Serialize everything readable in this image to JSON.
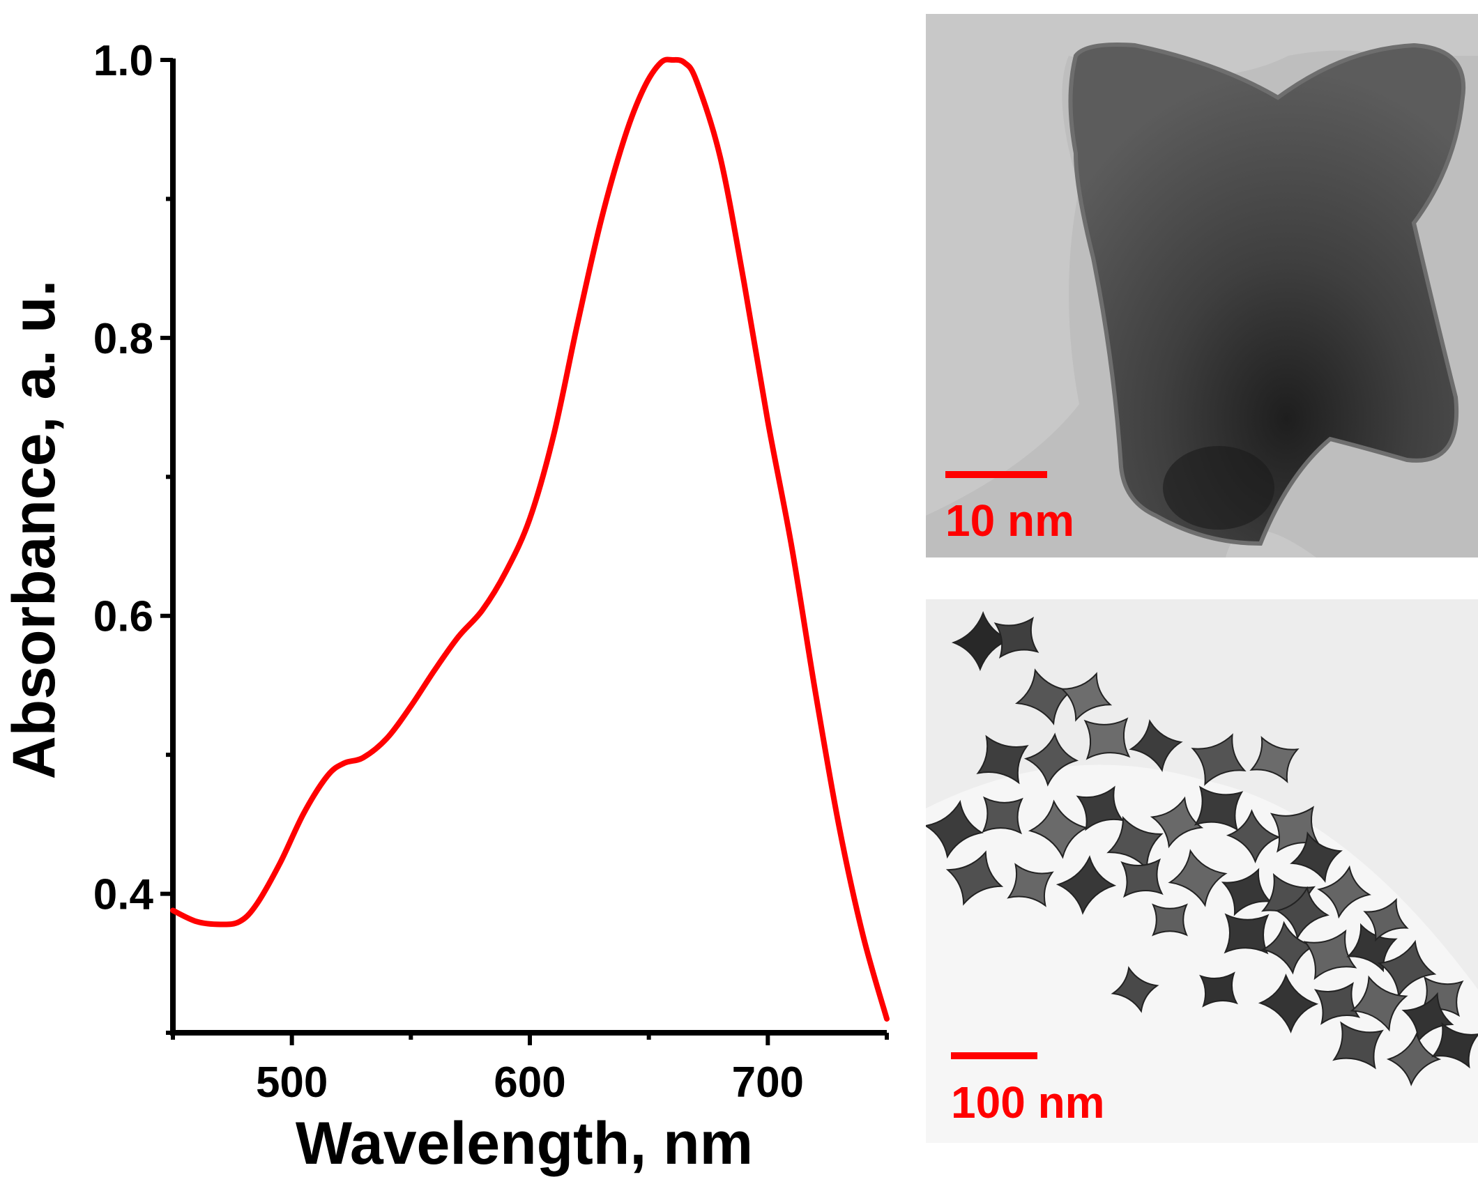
{
  "chart_data": {
    "type": "line",
    "xlabel": "Wavelength, nm",
    "ylabel": "Absorbance, a. u.",
    "xlim": [
      450,
      750
    ],
    "ylim": [
      0.3,
      1.0
    ],
    "xticks": [
      "500",
      "600",
      "700"
    ],
    "yticks": [
      "0.4",
      "0.6",
      "0.8",
      "1.0"
    ],
    "grid": false,
    "legend": "none",
    "series": [
      {
        "color": "#ff0000",
        "x": [
          450,
          460,
          470,
          478,
          485,
          495,
          505,
          515,
          522,
          530,
          540,
          550,
          560,
          570,
          580,
          590,
          600,
          610,
          620,
          630,
          640,
          648,
          655,
          660,
          665,
          670,
          680,
          690,
          700,
          710,
          720,
          730,
          740,
          750
        ],
        "y": [
          0.388,
          0.38,
          0.378,
          0.38,
          0.392,
          0.422,
          0.458,
          0.485,
          0.494,
          0.498,
          0.512,
          0.535,
          0.561,
          0.585,
          0.604,
          0.632,
          0.67,
          0.73,
          0.81,
          0.885,
          0.945,
          0.98,
          0.998,
          1.0,
          0.998,
          0.985,
          0.93,
          0.84,
          0.74,
          0.65,
          0.545,
          0.448,
          0.37,
          0.31
        ]
      }
    ]
  },
  "images": {
    "top": {
      "scale_label": "10 nm",
      "scale_color": "#ff0000"
    },
    "bottom": {
      "scale_label": "100 nm",
      "scale_color": "#ff0000"
    }
  }
}
